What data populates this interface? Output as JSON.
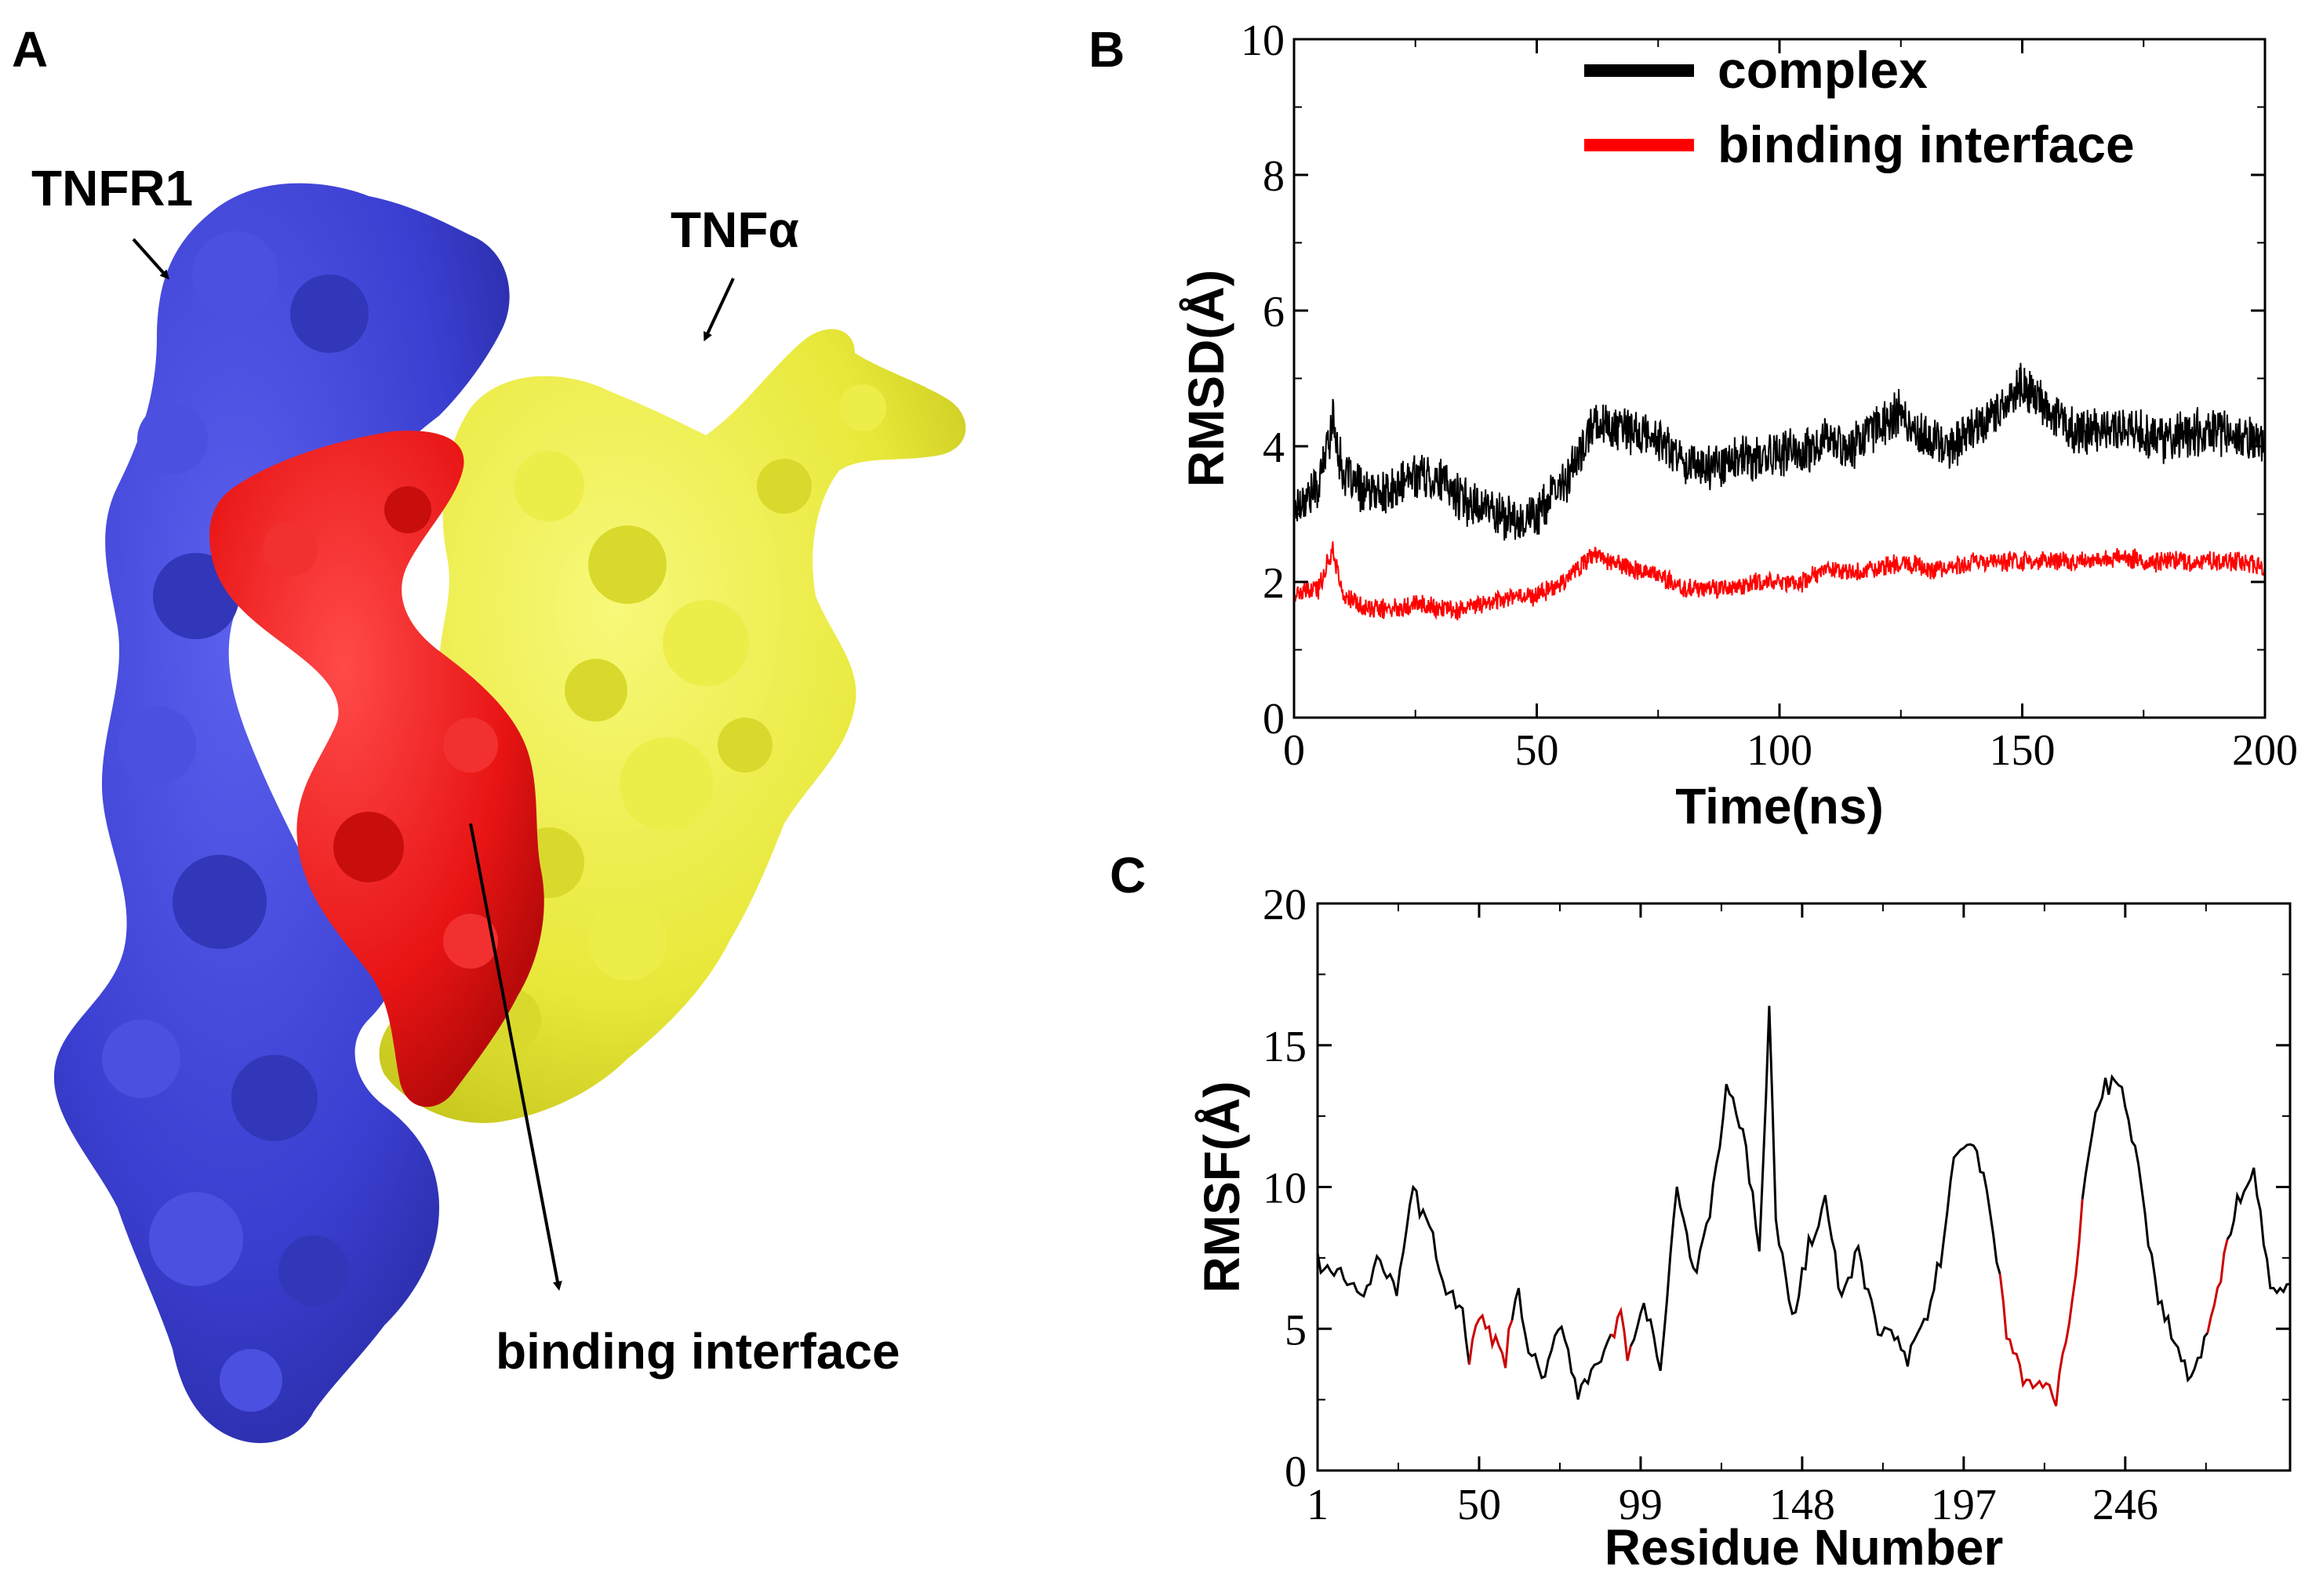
{
  "panel_a": {
    "letter": "A",
    "labels": {
      "tnfr1": "TNFR1",
      "tnfa": "TNFα",
      "binding_interface": "binding interface"
    },
    "colors": {
      "tnfr1": "#3b3fd1",
      "tnfa": "#e8e83a",
      "binding_interface": "#e81414"
    }
  },
  "chart_data": [
    {
      "panel": "B",
      "type": "line",
      "xlabel": "Time(ns)",
      "ylabel": "RMSD(Å)",
      "xlim": [
        0,
        200
      ],
      "ylim": [
        0,
        10
      ],
      "xticks": [
        0,
        50,
        100,
        150,
        200
      ],
      "yticks": [
        0,
        2,
        4,
        6,
        8,
        10
      ],
      "legend_position": "top-right",
      "series": [
        {
          "name": "complex",
          "color": "#000000",
          "x": [
            0,
            5,
            8,
            10,
            15,
            20,
            25,
            30,
            35,
            40,
            45,
            50,
            55,
            60,
            62,
            65,
            70,
            75,
            80,
            85,
            90,
            95,
            100,
            105,
            110,
            115,
            120,
            125,
            130,
            135,
            140,
            145,
            150,
            155,
            160,
            165,
            170,
            175,
            180,
            185,
            190,
            195,
            200
          ],
          "y": [
            3.1,
            3.4,
            4.4,
            3.6,
            3.3,
            3.3,
            3.6,
            3.5,
            3.2,
            3.1,
            2.9,
            3.0,
            3.4,
            4.0,
            4.4,
            4.3,
            4.2,
            4.1,
            3.8,
            3.7,
            3.8,
            3.8,
            3.9,
            3.9,
            4.1,
            4.0,
            4.3,
            4.5,
            4.1,
            4.0,
            4.3,
            4.5,
            4.9,
            4.6,
            4.2,
            4.2,
            4.3,
            4.2,
            4.1,
            4.2,
            4.2,
            4.1,
            4.1
          ],
          "noise": 0.3
        },
        {
          "name": "binding interface",
          "color": "#ff0000",
          "x": [
            0,
            5,
            8,
            10,
            15,
            20,
            25,
            30,
            35,
            40,
            45,
            50,
            55,
            60,
            62,
            65,
            70,
            75,
            80,
            85,
            90,
            95,
            100,
            105,
            110,
            115,
            120,
            125,
            130,
            135,
            140,
            145,
            150,
            155,
            160,
            165,
            170,
            175,
            180,
            185,
            190,
            195,
            200
          ],
          "y": [
            1.8,
            1.9,
            2.5,
            1.8,
            1.6,
            1.6,
            1.7,
            1.6,
            1.6,
            1.7,
            1.8,
            1.8,
            2.0,
            2.3,
            2.4,
            2.3,
            2.2,
            2.1,
            1.9,
            1.9,
            1.9,
            2.0,
            2.0,
            2.0,
            2.2,
            2.1,
            2.2,
            2.3,
            2.2,
            2.2,
            2.3,
            2.3,
            2.3,
            2.3,
            2.3,
            2.3,
            2.4,
            2.3,
            2.3,
            2.3,
            2.3,
            2.3,
            2.2
          ],
          "noise": 0.13
        }
      ]
    },
    {
      "panel": "C",
      "type": "line",
      "xlabel": "Residue Number",
      "ylabel": "RMSF(Å)",
      "xlim": [
        1,
        296
      ],
      "ylim": [
        0,
        20
      ],
      "xticks": [
        1,
        50,
        99,
        148,
        197,
        246
      ],
      "yticks": [
        0,
        5,
        10,
        15,
        20
      ],
      "series": [
        {
          "name": "",
          "color": "#000000",
          "highlight_color": "#cc0000",
          "highlight_ranges": [
            [
              47,
              59
            ],
            [
              90,
              95
            ],
            [
              208,
              232
            ],
            [
              271,
              276
            ]
          ],
          "x": [
            1,
            5,
            10,
            15,
            20,
            25,
            30,
            35,
            40,
            45,
            47,
            50,
            55,
            58,
            60,
            62,
            65,
            70,
            75,
            80,
            85,
            90,
            93,
            95,
            100,
            105,
            110,
            115,
            120,
            125,
            130,
            135,
            138,
            140,
            145,
            150,
            155,
            160,
            165,
            170,
            175,
            180,
            185,
            190,
            195,
            200,
            205,
            210,
            215,
            220,
            225,
            230,
            235,
            240,
            245,
            250,
            255,
            260,
            265,
            270,
            275,
            280,
            285,
            290,
            296
          ],
          "y": [
            7.4,
            7.0,
            6.7,
            6.1,
            7.5,
            6.5,
            9.8,
            8.5,
            6.5,
            5.4,
            4.0,
            5.3,
            4.5,
            3.8,
            5.5,
            6.2,
            4.2,
            3.2,
            5.3,
            2.7,
            3.8,
            4.5,
            5.6,
            3.6,
            6.0,
            3.5,
            10.1,
            6.8,
            9.0,
            13.5,
            12.0,
            8.0,
            16.2,
            9.0,
            5.2,
            8.0,
            9.5,
            6.0,
            7.7,
            5.2,
            4.8,
            4.0,
            5.0,
            7.5,
            11.5,
            11.5,
            9.3,
            5.0,
            3.2,
            3.0,
            2.6,
            6.0,
            11.5,
            13.5,
            13.6,
            10.5,
            6.5,
            5.0,
            3.2,
            4.5,
            7.0,
            9.5,
            10.9,
            6.5,
            6.5
          ],
          "noise": 0.35
        }
      ]
    }
  ]
}
